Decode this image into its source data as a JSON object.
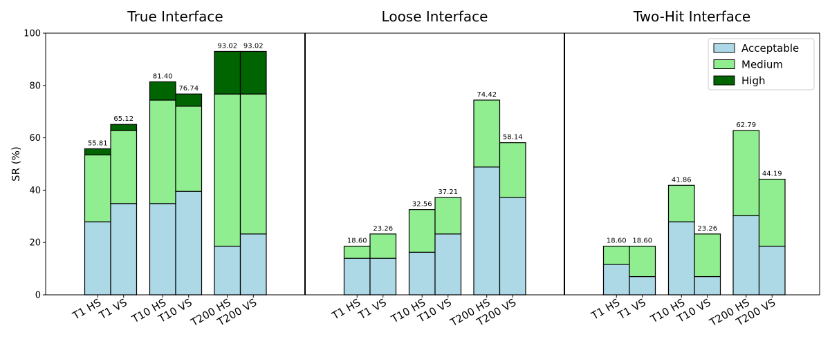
{
  "chart_data": {
    "type": "bar",
    "stacked": true,
    "ylabel": "SR (%)",
    "ylim": [
      0,
      100
    ],
    "yticks": [
      0,
      20,
      40,
      60,
      80,
      100
    ],
    "grid": false,
    "colors": {
      "Acceptable": "#add8e6",
      "Medium": "#90ee90",
      "High": "#006400"
    },
    "legend": {
      "placement": "top-right",
      "entries": [
        "Acceptable",
        "Medium",
        "High"
      ]
    },
    "categories": [
      "T1 HS",
      "T1 VS",
      "T10 HS",
      "T10 VS",
      "T200 HS",
      "T200 VS"
    ],
    "panels": [
      {
        "title": "True Interface",
        "series": [
          {
            "name": "Acceptable",
            "values": [
              27.91,
              34.88,
              34.88,
              39.53,
              18.6,
              23.26
            ]
          },
          {
            "name": "Medium",
            "values": [
              25.58,
              27.91,
              39.53,
              32.56,
              58.14,
              53.49
            ]
          },
          {
            "name": "High",
            "values": [
              2.32,
              2.33,
              6.99,
              4.65,
              16.28,
              16.27
            ]
          }
        ],
        "totals": [
          "55.81",
          "65.12",
          "81.40",
          "76.74",
          "93.02",
          "93.02"
        ]
      },
      {
        "title": "Loose Interface",
        "series": [
          {
            "name": "Acceptable",
            "values": [
              13.95,
              13.95,
              16.28,
              23.26,
              48.84,
              37.21
            ]
          },
          {
            "name": "Medium",
            "values": [
              4.65,
              9.31,
              16.28,
              13.95,
              25.58,
              20.93
            ]
          },
          {
            "name": "High",
            "values": [
              0,
              0,
              0,
              0,
              0,
              0
            ]
          }
        ],
        "totals": [
          "18.60",
          "23.26",
          "32.56",
          "37.21",
          "74.42",
          "58.14"
        ]
      },
      {
        "title": "Two-Hit Interface",
        "series": [
          {
            "name": "Acceptable",
            "values": [
              11.63,
              6.98,
              27.91,
              6.98,
              30.23,
              18.6
            ]
          },
          {
            "name": "Medium",
            "values": [
              6.97,
              11.62,
              13.95,
              16.28,
              32.56,
              25.59
            ]
          },
          {
            "name": "High",
            "values": [
              0,
              0,
              0,
              0,
              0,
              0
            ]
          }
        ],
        "totals": [
          "18.60",
          "18.60",
          "41.86",
          "23.26",
          "62.79",
          "44.19"
        ]
      }
    ]
  }
}
